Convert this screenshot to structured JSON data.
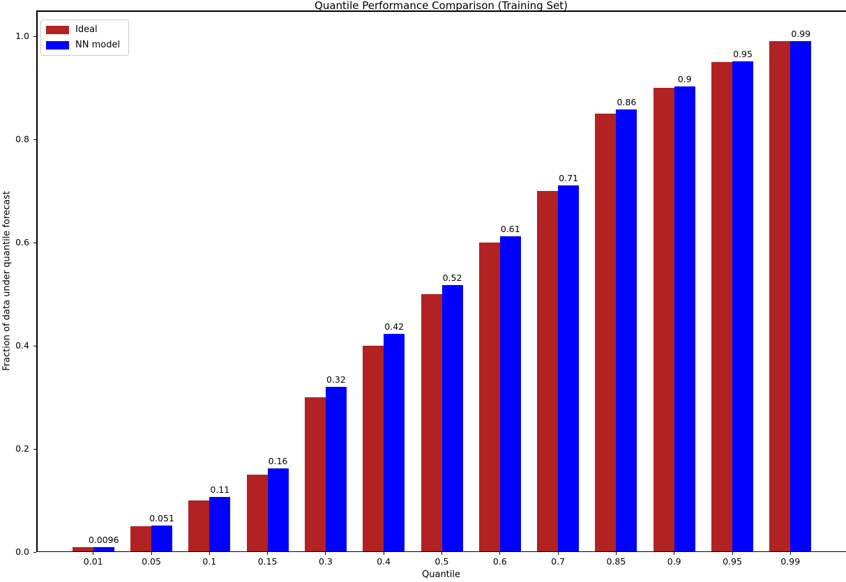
{
  "chart_data": {
    "type": "bar",
    "title": "Quantile Performance Comparison (Training Set)",
    "xlabel": "Quantile",
    "ylabel": "Fraction of data under quantile forecast",
    "categories": [
      "0.01",
      "0.05",
      "0.1",
      "0.15",
      "0.3",
      "0.4",
      "0.5",
      "0.6",
      "0.7",
      "0.85",
      "0.9",
      "0.95",
      "0.99"
    ],
    "series": [
      {
        "name": "Ideal",
        "color": "#B22222",
        "values": [
          0.01,
          0.05,
          0.1,
          0.15,
          0.3,
          0.4,
          0.5,
          0.6,
          0.7,
          0.85,
          0.9,
          0.95,
          0.99
        ]
      },
      {
        "name": "NN model",
        "color": "#0000FF",
        "values": [
          0.0096,
          0.051,
          0.107,
          0.162,
          0.32,
          0.423,
          0.517,
          0.612,
          0.711,
          0.858,
          0.903,
          0.952,
          0.991
        ],
        "value_labels": [
          "0.0096",
          "0.051",
          "0.11",
          "0.16",
          "0.32",
          "0.42",
          "0.52",
          "0.61",
          "0.71",
          "0.86",
          "0.9",
          "0.95",
          "0.99"
        ]
      }
    ],
    "yticks": [
      "0.0",
      "0.2",
      "0.4",
      "0.6",
      "0.8",
      "1.0"
    ],
    "ylim": [
      0,
      1.05
    ],
    "grid": false,
    "legend_position": "upper left",
    "background_color": "#ffffff",
    "text_color": "#000000"
  }
}
